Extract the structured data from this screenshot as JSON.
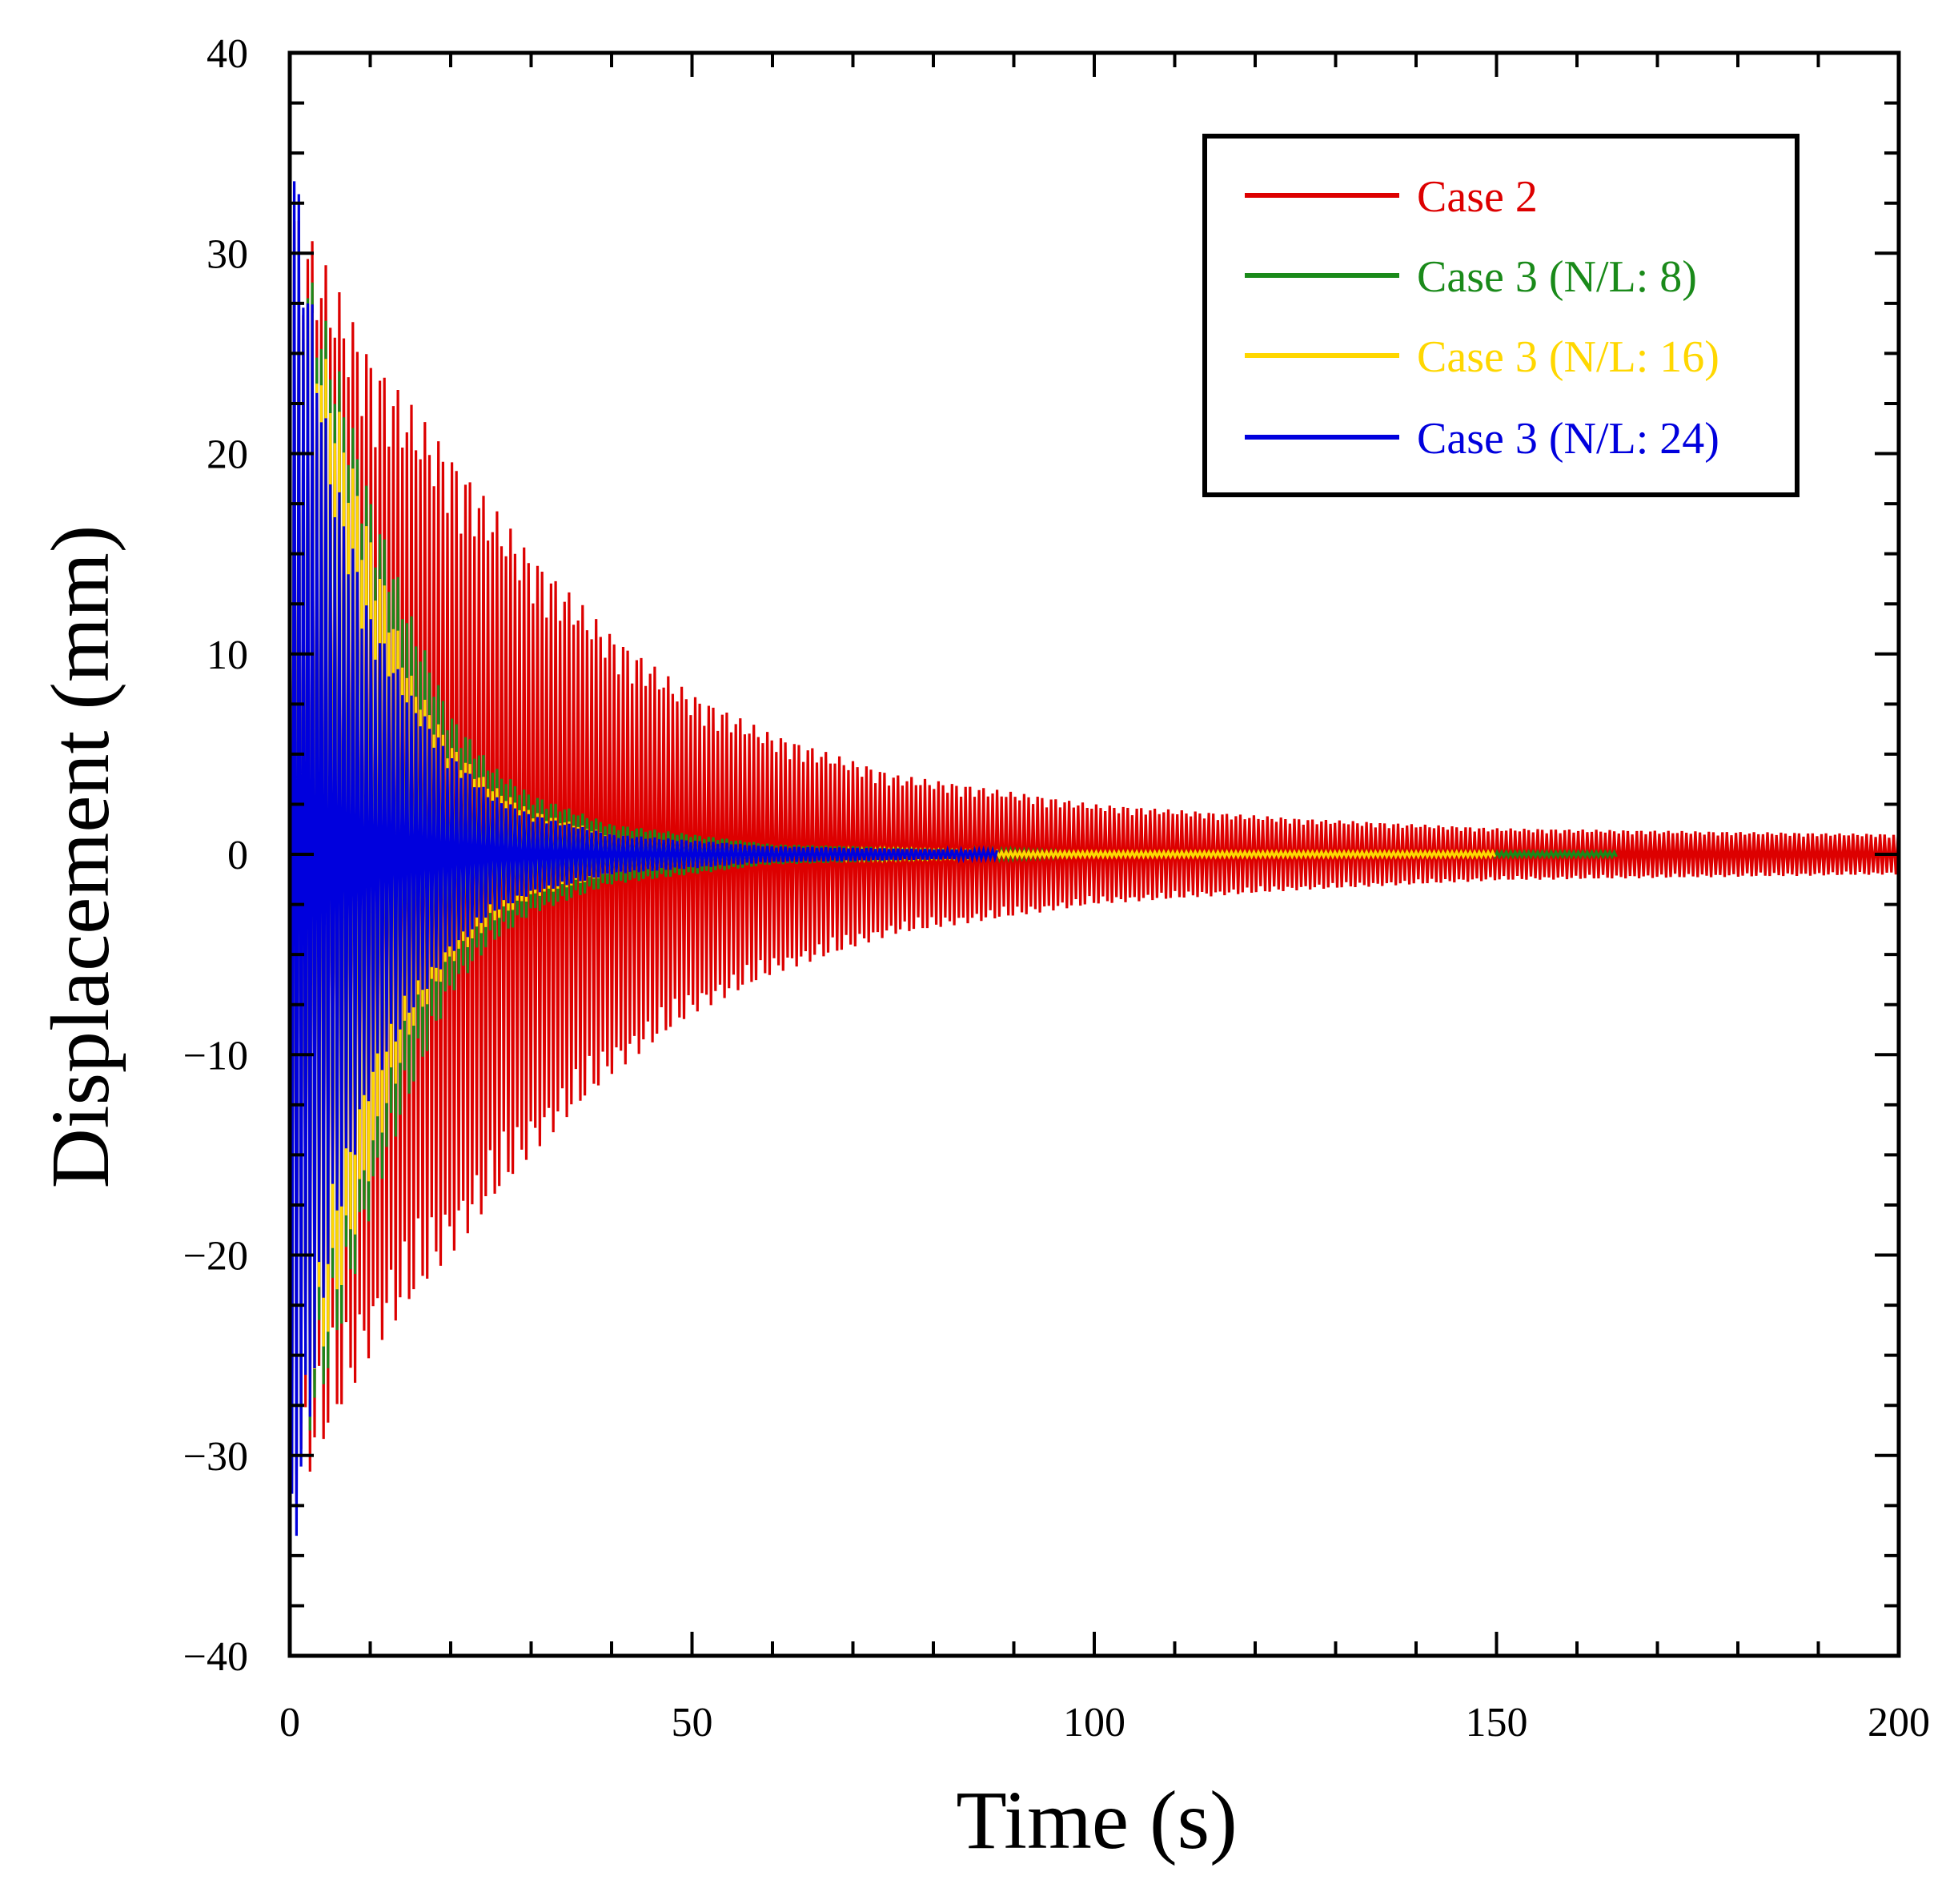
{
  "chart_data": {
    "type": "line",
    "xlabel": "Time (s)",
    "ylabel": "Displacement (mm)",
    "xlim": [
      0,
      200
    ],
    "ylim": [
      -40,
      40
    ],
    "x_ticks": [
      0,
      50,
      100,
      150,
      200
    ],
    "x_tick_labels": [
      "0",
      "50",
      "100",
      "150",
      "200"
    ],
    "y_ticks": [
      40,
      30,
      20,
      10,
      0,
      -10,
      -20,
      -30,
      -40
    ],
    "y_tick_labels": [
      "40",
      "30",
      "20",
      "10",
      "0",
      "−10",
      "−20",
      "−30",
      "−40"
    ],
    "grid": false,
    "legend_position": "top-right",
    "series": [
      {
        "name": "Case 2",
        "color": "#dd0000",
        "peak_amplitude": 33,
        "decay_time_constant_s": 42,
        "end_time_s": 200,
        "envelope_upper": [
          [
            0,
            33
          ],
          [
            10,
            25
          ],
          [
            20,
            20
          ],
          [
            30,
            15
          ],
          [
            40,
            11
          ],
          [
            50,
            8
          ],
          [
            60,
            6
          ],
          [
            75,
            4
          ],
          [
            100,
            2.5
          ],
          [
            125,
            1.8
          ],
          [
            150,
            1.3
          ],
          [
            200,
            1.0
          ]
        ]
      },
      {
        "name": "Case 3 (N/L: 8)",
        "color": "#1a8a1a",
        "peak_amplitude": 32,
        "decay_time_constant_s": 14,
        "end_time_s": 165,
        "envelope_upper": [
          [
            0,
            32
          ],
          [
            5,
            26
          ],
          [
            10,
            18
          ],
          [
            15,
            12
          ],
          [
            20,
            7
          ],
          [
            25,
            4.5
          ],
          [
            30,
            3
          ],
          [
            40,
            1.5
          ],
          [
            60,
            0.5
          ],
          [
            100,
            0.1
          ],
          [
            165,
            0
          ]
        ]
      },
      {
        "name": "Case 3 (N/L: 16)",
        "color": "#ffd700",
        "peak_amplitude": 31,
        "decay_time_constant_s": 12,
        "end_time_s": 150,
        "envelope_upper": [
          [
            0,
            31
          ],
          [
            5,
            24
          ],
          [
            10,
            16
          ],
          [
            15,
            9
          ],
          [
            20,
            5.5
          ],
          [
            25,
            3.5
          ],
          [
            30,
            2.2
          ],
          [
            40,
            1
          ],
          [
            60,
            0.3
          ],
          [
            100,
            0.05
          ],
          [
            150,
            0
          ]
        ]
      },
      {
        "name": "Case 3 (N/L: 24)",
        "color": "#0000dd",
        "peak_amplitude": 37,
        "decay_time_constant_s": 10,
        "end_time_s": 88,
        "envelope_upper": [
          [
            0,
            37
          ],
          [
            5,
            20
          ],
          [
            10,
            12
          ],
          [
            15,
            8
          ],
          [
            20,
            5
          ],
          [
            25,
            3
          ],
          [
            30,
            2
          ],
          [
            40,
            1
          ],
          [
            60,
            0.4
          ],
          [
            88,
            0.2
          ]
        ]
      }
    ]
  }
}
